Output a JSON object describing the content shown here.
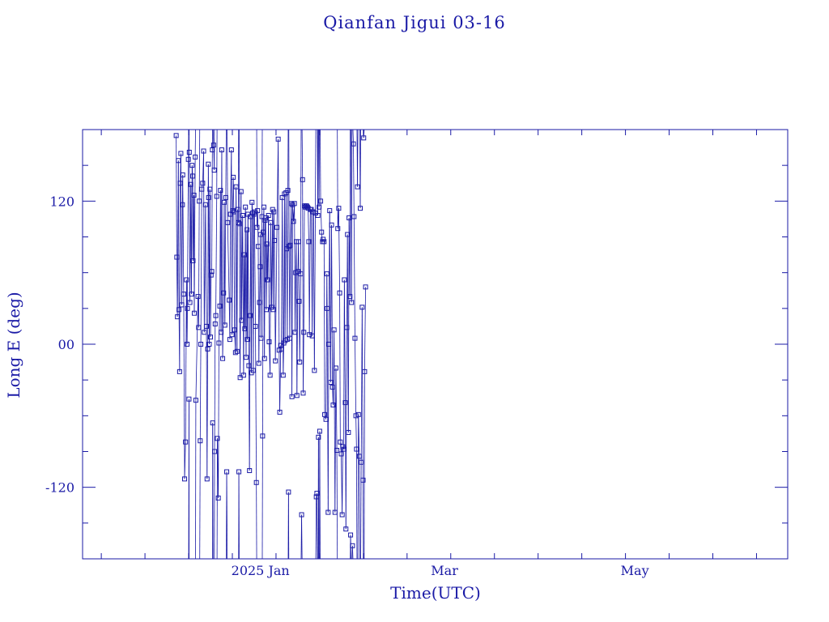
{
  "chart_data": {
    "type": "scatter",
    "title": "Qianfan Jigui 03-16",
    "xlabel": "Time(UTC)",
    "ylabel": "Long E (deg)",
    "x_ticks": [
      "2025 Jan",
      "Mar",
      "May"
    ],
    "y_ticks": [
      "-120",
      "00",
      "120"
    ],
    "ylim": [
      -180,
      180
    ],
    "grid": false,
    "series": [
      {
        "marker": "square",
        "connected": true,
        "points": [
          [
            -27,
            175
          ],
          [
            -26.8,
            73
          ],
          [
            -26.6,
            23
          ],
          [
            -26.3,
            154
          ],
          [
            -26.1,
            29
          ],
          [
            -25.9,
            -23
          ],
          [
            -25.7,
            135
          ],
          [
            -25.5,
            160
          ],
          [
            -25.2,
            33
          ],
          [
            -25,
            117
          ],
          [
            -24.9,
            142
          ],
          [
            -24.6,
            42
          ],
          [
            -24.3,
            -113
          ],
          [
            -24,
            -82
          ],
          [
            -23.7,
            54
          ],
          [
            -23.5,
            0
          ],
          [
            -23.4,
            30
          ],
          [
            -23.1,
            155
          ],
          [
            -22.9,
            -46
          ],
          [
            -22.8,
            161
          ],
          [
            -22.6,
            35
          ],
          [
            -22.3,
            134
          ],
          [
            -22.1,
            42
          ],
          [
            -21.9,
            150
          ],
          [
            -21.7,
            141
          ],
          [
            -21.6,
            70
          ],
          [
            -21.3,
            125
          ],
          [
            -21.2,
            26
          ],
          [
            -20.9,
            157
          ],
          [
            -20.7,
            -47
          ],
          [
            -20,
            40
          ],
          [
            -19.8,
            14
          ],
          [
            -19.6,
            120
          ],
          [
            -19.3,
            -81
          ],
          [
            -19.1,
            0
          ],
          [
            -18.8,
            130
          ],
          [
            -18.5,
            135
          ],
          [
            -18.2,
            162
          ],
          [
            -18,
            10
          ],
          [
            -17.6,
            117
          ],
          [
            -17.3,
            15
          ],
          [
            -17.1,
            -113
          ],
          [
            -16.9,
            -4
          ],
          [
            -16.7,
            151
          ],
          [
            -16.6,
            123
          ],
          [
            -16.4,
            0
          ],
          [
            -16.2,
            130
          ],
          [
            -16,
            6
          ],
          [
            -15.8,
            58
          ],
          [
            -15.6,
            61
          ],
          [
            -15.4,
            163
          ],
          [
            -15.3,
            -66
          ],
          [
            -15,
            167
          ],
          [
            -14.8,
            146
          ],
          [
            -14.7,
            -90
          ],
          [
            -14.5,
            17
          ],
          [
            -14.3,
            24
          ],
          [
            -14,
            124
          ],
          [
            -13.8,
            -79
          ],
          [
            -13.5,
            -129
          ],
          [
            -13.3,
            1
          ],
          [
            -13,
            32
          ],
          [
            -12.8,
            129
          ],
          [
            -12.6,
            10
          ],
          [
            -12.4,
            163
          ],
          [
            -12.1,
            -12
          ],
          [
            -11.8,
            43
          ],
          [
            -11.6,
            119
          ],
          [
            -11.4,
            16
          ],
          [
            -11.1,
            123
          ],
          [
            -10.8,
            -107
          ],
          [
            -10.5,
            102
          ],
          [
            -10,
            37
          ],
          [
            -9.8,
            4
          ],
          [
            -9.6,
            109
          ],
          [
            -9.3,
            163
          ],
          [
            -9.1,
            8
          ],
          [
            -8.9,
            112
          ],
          [
            -8.7,
            140
          ],
          [
            -8.5,
            111
          ],
          [
            -8.3,
            12
          ],
          [
            -8,
            -7
          ],
          [
            -7.8,
            132
          ],
          [
            -7.5,
            -6
          ],
          [
            -7.3,
            113
          ],
          [
            -7.1,
            102
          ],
          [
            -6.9,
            -107
          ],
          [
            -6.7,
            101
          ],
          [
            -6.5,
            -28
          ],
          [
            -6.2,
            128
          ],
          [
            -6,
            20
          ],
          [
            -5.7,
            108
          ],
          [
            -5.4,
            -26
          ],
          [
            -5.2,
            75
          ],
          [
            -5,
            13
          ],
          [
            -4.8,
            115
          ],
          [
            -4.6,
            -11
          ],
          [
            -4.3,
            96
          ],
          [
            -4.2,
            4
          ],
          [
            -4,
            109
          ],
          [
            -3.7,
            -18
          ],
          [
            -3.5,
            -106
          ],
          [
            -3.3,
            24
          ],
          [
            -3.1,
            107
          ],
          [
            -2.9,
            -24
          ],
          [
            -2.7,
            119
          ],
          [
            -2.5,
            110
          ],
          [
            -2.3,
            -22
          ],
          [
            -2.1,
            109
          ],
          [
            -1.9,
            111
          ],
          [
            -1.6,
            15
          ],
          [
            -1.3,
            -116
          ],
          [
            -1.1,
            98
          ],
          [
            -0.9,
            112
          ],
          [
            -0.7,
            82
          ],
          [
            -0.5,
            -16
          ],
          [
            -0.3,
            35
          ],
          [
            -0.1,
            65
          ],
          [
            0,
            92
          ],
          [
            0.2,
            5
          ],
          [
            0.5,
            107
          ],
          [
            0.7,
            -77
          ],
          [
            0.9,
            94
          ],
          [
            1.1,
            115
          ],
          [
            1.3,
            -12
          ],
          [
            1.5,
            104
          ],
          [
            1.7,
            106
          ],
          [
            1.9,
            29
          ],
          [
            2.1,
            84
          ],
          [
            2.3,
            54
          ],
          [
            2.6,
            108
          ],
          [
            2.8,
            2
          ],
          [
            3.1,
            -26
          ],
          [
            3.3,
            102
          ],
          [
            3.6,
            31
          ],
          [
            3.9,
            113
          ],
          [
            4.1,
            29
          ],
          [
            4.3,
            111
          ],
          [
            4.5,
            87
          ],
          [
            4.8,
            -14
          ],
          [
            5.3,
            98
          ],
          [
            5.7,
            172
          ],
          [
            6,
            -5
          ],
          [
            6.2,
            -57
          ],
          [
            6.5,
            -1
          ],
          [
            6.7,
            -4
          ],
          [
            7,
            123
          ],
          [
            7.3,
            -26
          ],
          [
            7.5,
            1
          ],
          [
            7.7,
            126
          ],
          [
            7.9,
            3
          ],
          [
            8.2,
            127
          ],
          [
            8.4,
            80
          ],
          [
            8.6,
            4
          ],
          [
            8.8,
            129
          ],
          [
            9,
            -124
          ],
          [
            9.2,
            82
          ],
          [
            9.4,
            5
          ],
          [
            9.6,
            83
          ],
          [
            9.9,
            118
          ],
          [
            10.1,
            -44
          ],
          [
            10.3,
            117
          ],
          [
            10.6,
            103
          ],
          [
            10.9,
            118
          ],
          [
            11.1,
            10
          ],
          [
            11.3,
            60
          ],
          [
            11.5,
            86
          ],
          [
            11.7,
            -43
          ],
          [
            12,
            61
          ],
          [
            12.2,
            86
          ],
          [
            12.4,
            36
          ],
          [
            12.6,
            -15
          ],
          [
            12.9,
            59
          ],
          [
            13.2,
            -143
          ],
          [
            13.5,
            138
          ],
          [
            13.7,
            -41
          ],
          [
            13.9,
            10
          ],
          [
            14.1,
            116
          ],
          [
            14.3,
            115
          ],
          [
            14.6,
            116
          ],
          [
            14.8,
            116
          ],
          [
            15.1,
            115
          ],
          [
            15.3,
            114
          ],
          [
            15.5,
            86
          ],
          [
            15.7,
            8
          ],
          [
            16,
            113
          ],
          [
            16.3,
            113
          ],
          [
            16.6,
            7
          ],
          [
            16.8,
            111
          ],
          [
            17,
            111
          ],
          [
            17.3,
            -22
          ],
          [
            17.6,
            110
          ],
          [
            17.9,
            -128
          ],
          [
            18.1,
            -125
          ],
          [
            18.4,
            108
          ],
          [
            18.6,
            -78
          ],
          [
            18.8,
            115
          ],
          [
            19,
            -73
          ],
          [
            19.3,
            120
          ],
          [
            19.6,
            94
          ],
          [
            19.9,
            86
          ],
          [
            20.1,
            88
          ],
          [
            20.4,
            86
          ],
          [
            20.6,
            -59
          ],
          [
            21,
            -63
          ],
          [
            21.3,
            59
          ],
          [
            21.4,
            30
          ],
          [
            21.7,
            -141
          ],
          [
            21.9,
            0
          ],
          [
            22.2,
            112
          ],
          [
            22.5,
            -32
          ],
          [
            22.8,
            100
          ],
          [
            23.1,
            -36
          ],
          [
            23.3,
            -51
          ],
          [
            23.6,
            12
          ],
          [
            23.9,
            -141
          ],
          [
            24.2,
            -20
          ],
          [
            24.5,
            -89
          ],
          [
            24.8,
            97
          ],
          [
            25.1,
            114
          ],
          [
            25.4,
            43
          ],
          [
            25.6,
            -82
          ],
          [
            25.9,
            -92
          ],
          [
            26.2,
            -143
          ],
          [
            26.4,
            -86
          ],
          [
            26.7,
            -88
          ],
          [
            26.9,
            54
          ],
          [
            27.2,
            -49
          ],
          [
            27.4,
            -155
          ],
          [
            27.7,
            14
          ],
          [
            27.9,
            92
          ],
          [
            28.2,
            -74
          ],
          [
            28.4,
            106
          ],
          [
            28.7,
            40
          ],
          [
            28.9,
            -160
          ],
          [
            29.2,
            35
          ],
          [
            29.5,
            -169
          ],
          [
            29.8,
            168
          ],
          [
            30,
            107
          ],
          [
            30.3,
            5
          ],
          [
            30.6,
            -60
          ],
          [
            30.8,
            -88
          ],
          [
            31.1,
            132
          ],
          [
            31.4,
            -59
          ],
          [
            31.7,
            -94
          ],
          [
            32,
            114
          ],
          [
            32.3,
            -99
          ],
          [
            32.6,
            31
          ],
          [
            32.9,
            -114
          ],
          [
            33.1,
            173
          ],
          [
            33.4,
            -23
          ],
          [
            33.7,
            48
          ]
        ]
      }
    ]
  }
}
